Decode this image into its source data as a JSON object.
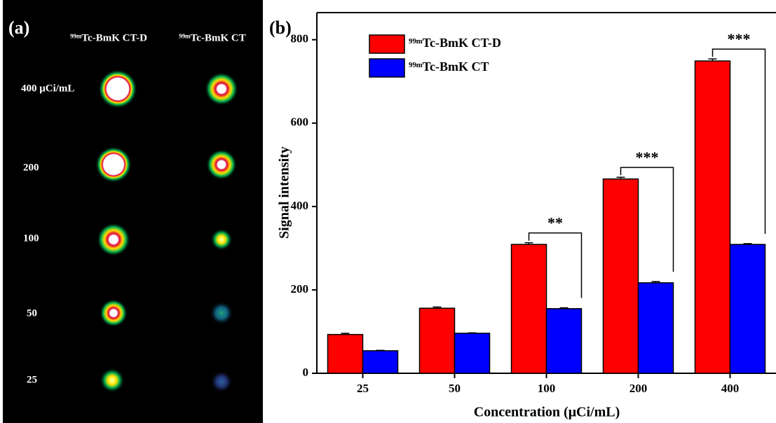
{
  "image_panel": {
    "label": "(a)",
    "columns": [
      "⁹⁹ᵐTc-BmK CT-D",
      "⁹⁹ᵐTc-BmK CT"
    ],
    "rows": [
      "400 μCi/mL",
      "200",
      "100",
      "50",
      "25"
    ]
  },
  "chart_data": {
    "type": "bar",
    "label": "(b)",
    "x_label": "Concentration (μCi/mL)",
    "y_label": "Signal intensity",
    "categories": [
      "25",
      "50",
      "100",
      "200",
      "400"
    ],
    "series": [
      {
        "name": "⁹⁹ᵐTc-BmK CT-D",
        "color": "#ff0000",
        "values": [
          93,
          156,
          309,
          466,
          749
        ],
        "errors": [
          3,
          3,
          4,
          4,
          5
        ]
      },
      {
        "name": "⁹⁹ᵐTc-BmK CT",
        "color": "#0000ff",
        "values": [
          54,
          96,
          155,
          217,
          309
        ],
        "errors": [
          1,
          1,
          2,
          3,
          2
        ]
      }
    ],
    "significance": [
      null,
      null,
      "**",
      "***",
      "***"
    ],
    "ylim": [
      0,
      865
    ],
    "yticks": [
      0,
      200,
      400,
      600,
      800
    ],
    "legend": "upper left",
    "grid": false
  }
}
